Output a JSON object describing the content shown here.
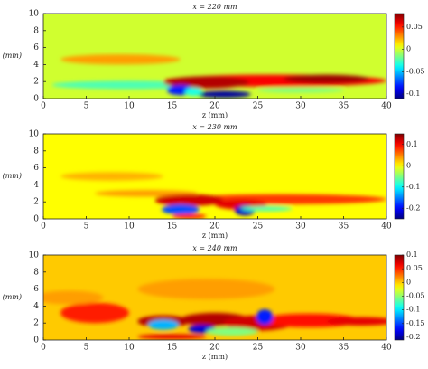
{
  "chart_data": [
    {
      "type": "contour",
      "colormap": "jet",
      "title": "x = 220 mm",
      "xlabel": "z (mm)",
      "ylabel": "yₙ (mm)",
      "xlim": [
        0,
        40
      ],
      "xticks": [
        0,
        5,
        10,
        15,
        20,
        25,
        30,
        35,
        40
      ],
      "ylim": [
        0,
        10
      ],
      "yticks": [
        0,
        2,
        4,
        6,
        8,
        10
      ],
      "clim": [
        -0.11,
        0.08
      ],
      "cticks": [
        0.05,
        0,
        -0.05,
        -0.1
      ]
    },
    {
      "type": "contour",
      "colormap": "jet",
      "title": "x = 230 mm",
      "xlabel": "z (mm)",
      "ylabel": "yₙ (mm)",
      "xlim": [
        0,
        40
      ],
      "xticks": [
        0,
        5,
        10,
        15,
        20,
        25,
        30,
        35,
        40
      ],
      "ylim": [
        0,
        10
      ],
      "yticks": [
        0,
        2,
        4,
        6,
        8,
        10
      ],
      "clim": [
        -0.25,
        0.15
      ],
      "cticks": [
        0.1,
        0,
        -0.1,
        -0.2
      ]
    },
    {
      "type": "contour",
      "colormap": "jet",
      "title": "x = 240 mm",
      "xlabel": "z (mm)",
      "ylabel": "yₙ (mm)",
      "xlim": [
        0,
        40
      ],
      "xticks": [
        0,
        5,
        10,
        15,
        20,
        25,
        30,
        35,
        40
      ],
      "ylim": [
        0,
        10
      ],
      "yticks": [
        0,
        2,
        4,
        6,
        8,
        10
      ],
      "clim": [
        -0.21,
        0.1
      ],
      "cticks": [
        0.1,
        0.05,
        0,
        -0.05,
        -0.1,
        -0.15,
        -0.2
      ]
    }
  ]
}
